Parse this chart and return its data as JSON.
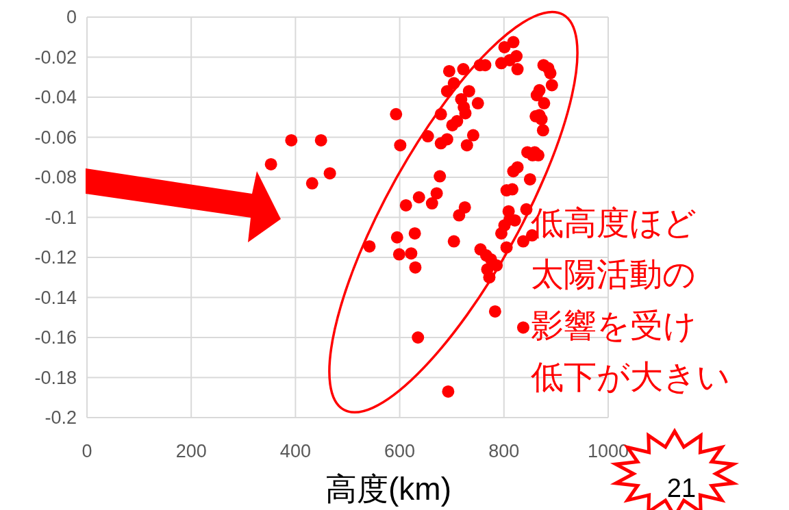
{
  "chart_data": {
    "type": "scatter",
    "xlabel": "高度(km)",
    "x": [
      353,
      392,
      449,
      432,
      466,
      542,
      593,
      601,
      595,
      599,
      612,
      622,
      629,
      630,
      637,
      635,
      654,
      662,
      671,
      679,
      677,
      679,
      693,
      691,
      695,
      691,
      704,
      704,
      701,
      710,
      714,
      718,
      723,
      725,
      722,
      726,
      729,
      733,
      741,
      750,
      754,
      764,
      755,
      766,
      768,
      772,
      775,
      786,
      783,
      795,
      801,
      811,
      818,
      824,
      826,
      795,
      801,
      805,
      809,
      805,
      816,
      811,
      821,
      818,
      826,
      837,
      843,
      845,
      854,
      859,
      855,
      866,
      850,
      863,
      868,
      872,
      875,
      877,
      868,
      861,
      876,
      885,
      889,
      892,
      837
    ],
    "values": [
      -0.0735,
      -0.0615,
      -0.0615,
      -0.083,
      -0.078,
      -0.1145,
      -0.0485,
      -0.064,
      -0.11,
      -0.1185,
      -0.094,
      -0.118,
      -0.108,
      -0.125,
      -0.09,
      -0.16,
      -0.0595,
      -0.093,
      -0.088,
      -0.063,
      -0.0795,
      -0.0485,
      -0.187,
      -0.061,
      -0.027,
      -0.037,
      -0.033,
      -0.112,
      -0.054,
      -0.052,
      -0.099,
      -0.041,
      -0.045,
      -0.095,
      -0.026,
      -0.048,
      -0.064,
      -0.037,
      -0.059,
      -0.043,
      -0.024,
      -0.024,
      -0.116,
      -0.119,
      -0.126,
      -0.13,
      -0.121,
      -0.124,
      -0.147,
      -0.023,
      -0.015,
      -0.0215,
      -0.0125,
      -0.0195,
      -0.026,
      -0.108,
      -0.104,
      -0.115,
      -0.097,
      -0.0865,
      -0.086,
      -0.101,
      -0.1015,
      -0.077,
      -0.075,
      -0.112,
      -0.096,
      -0.0675,
      -0.109,
      -0.0675,
      -0.069,
      -0.069,
      -0.081,
      -0.039,
      -0.0365,
      -0.051,
      -0.0565,
      -0.043,
      -0.049,
      -0.0495,
      -0.024,
      -0.0255,
      -0.028,
      -0.034,
      -0.155
    ],
    "color": "#ff0000",
    "marker": "circle",
    "xlim": [
      0,
      1000
    ],
    "ylim": [
      -0.2,
      0
    ],
    "xticks": [
      0,
      200,
      400,
      600,
      800,
      1000
    ],
    "yticks": [
      0,
      -0.02,
      -0.04,
      -0.06,
      -0.08,
      -0.1,
      -0.12,
      -0.14,
      -0.16,
      -0.18,
      -0.2
    ],
    "grid": true,
    "annotations": [
      "低高度ほど",
      "太陽活動の",
      "影響を受け",
      "低下が大きい",
      "21"
    ]
  }
}
